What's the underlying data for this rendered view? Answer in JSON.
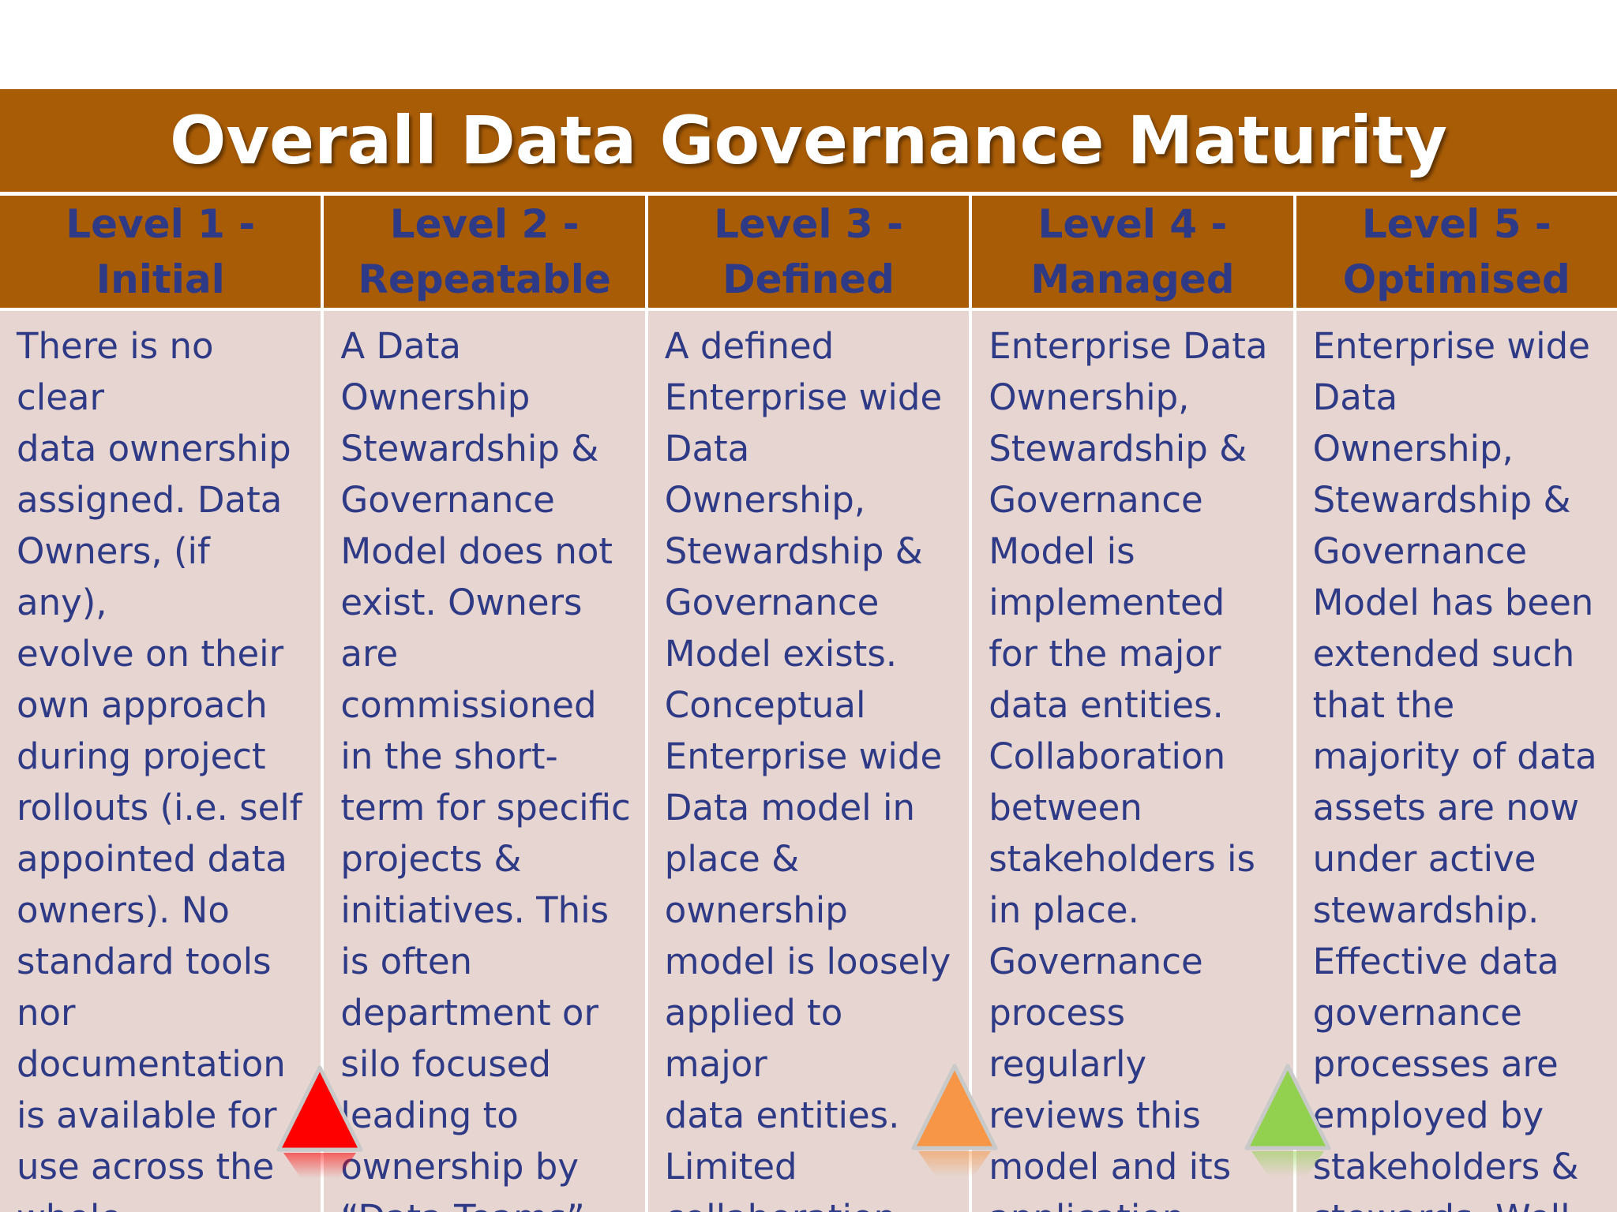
{
  "title": "Overall Data Governance Maturity",
  "levels": [
    {
      "heading": "Level 1 - Initial",
      "description": "There is no clear\ndata ownership\nassigned. Data\nOwners, (if any),\nevolve on their\nown approach\nduring project\nrollouts (i.e. self\nappointed data\nowners). No\nstandard tools\nnor\ndocumentation\nis available for\nuse across the\nwhole\nenterprise.\nEvidence of data"
    },
    {
      "heading": "Level 2 -\nRepeatable",
      "description": "A Data\nOwnership\nStewardship &\nGovernance\nModel does not\nexist.  Owners\nare\ncommissioned\nin the short-\nterm for specific\nprojects &\ninitiatives.  This\nis often\ndepartment or\nsilo focused\nleading to\nownership by\n“Data Teams”"
    },
    {
      "heading": "Level 3 -\nDefined",
      "description": "A defined\nEnterprise wide\nData Ownership,\nStewardship &\nGovernance\nModel exists.\nConceptual\nEnterprise wide\nData  model in\nplace &\nownership\nmodel is loosely\napplied to major\ndata entities.\nLimited\ncollaboration.\nOrganisation not\nyet fully aligned to"
    },
    {
      "heading": "Level 4 -\nManaged",
      "description": "Enterprise Data\nOwnership,\nStewardship &\nGovernance\nModel is\nimplemented\nfor the major\ndata entities.\nCollaboration\nbetween\nstakeholders is\nin place.\nGovernance\nprocess\nregularly\nreviews this\nmodel and its\napplication"
    },
    {
      "heading": "Level 5 -\nOptimised",
      "description": "Enterprise wide\nData Ownership,\nStewardship &\nGovernance\nModel has been\nextended such\nthat the\nmajority of data\nassets are now\nunder active\nstewardship.\nEffective data\ngovernance\nprocesses are\nemployed by\nstakeholders &\nstewards. Well\ndefined"
    }
  ],
  "markers": [
    {
      "name": "red-triangle-icon",
      "color": "#ff0000"
    },
    {
      "name": "orange-triangle-icon",
      "color": "#f79646"
    },
    {
      "name": "green-triangle-icon",
      "color": "#92d050"
    }
  ],
  "colors": {
    "header_bg": "#a95c06",
    "title_text": "#ffffff",
    "heading_text": "#2e3a85",
    "cell_bg": "#e6d5d0",
    "body_text": "#2e3a85"
  }
}
